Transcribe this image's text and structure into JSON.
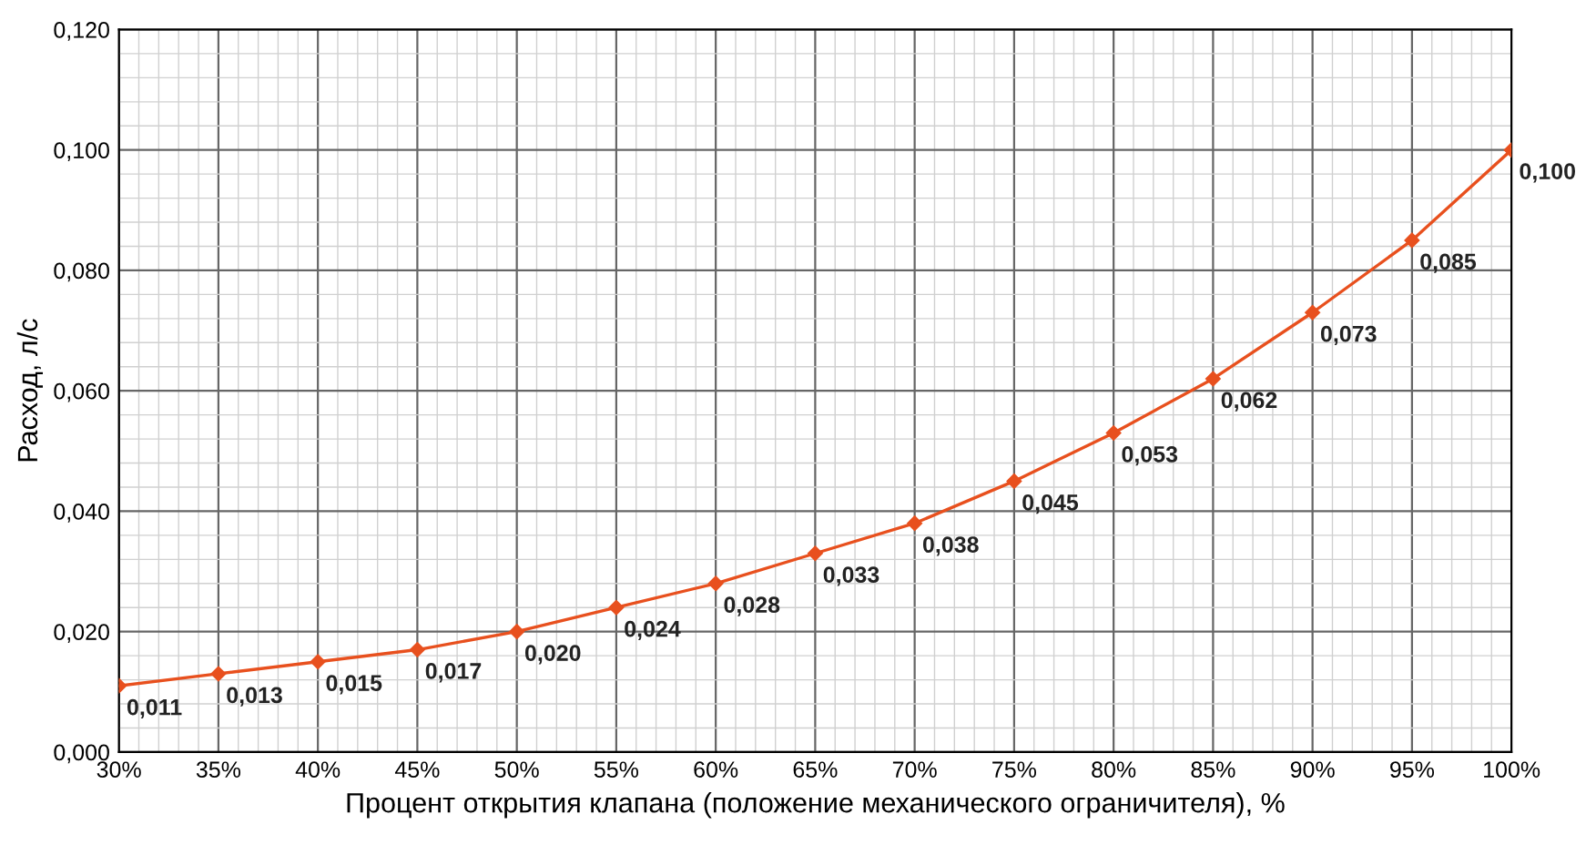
{
  "chart_data": {
    "type": "line",
    "xlabel": "Процент открытия клапана (положение механического ограничителя), %",
    "ylabel": "Расход, л/с",
    "x": [
      30,
      35,
      40,
      45,
      50,
      55,
      60,
      65,
      70,
      75,
      80,
      85,
      90,
      95,
      100
    ],
    "series": [
      {
        "color": "#e8501e",
        "values": [
          0.011,
          0.013,
          0.015,
          0.017,
          0.02,
          0.024,
          0.028,
          0.033,
          0.038,
          0.045,
          0.053,
          0.062,
          0.073,
          0.085,
          0.1
        ],
        "value_labels": [
          "0,011",
          "0,013",
          "0,015",
          "0,017",
          "0,020",
          "0,024",
          "0,028",
          "0,033",
          "0,038",
          "0,045",
          "0,053",
          "0,062",
          "0,073",
          "0,085",
          "0,100"
        ]
      }
    ],
    "xlim": [
      30,
      100
    ],
    "ylim": [
      0,
      0.12
    ],
    "xticks": [
      {
        "value": 30,
        "label": "30%"
      },
      {
        "value": 35,
        "label": "35%"
      },
      {
        "value": 40,
        "label": "40%"
      },
      {
        "value": 45,
        "label": "45%"
      },
      {
        "value": 50,
        "label": "50%"
      },
      {
        "value": 55,
        "label": "55%"
      },
      {
        "value": 60,
        "label": "60%"
      },
      {
        "value": 65,
        "label": "65%"
      },
      {
        "value": 70,
        "label": "70%"
      },
      {
        "value": 75,
        "label": "75%"
      },
      {
        "value": 80,
        "label": "80%"
      },
      {
        "value": 85,
        "label": "85%"
      },
      {
        "value": 90,
        "label": "90%"
      },
      {
        "value": 95,
        "label": "95%"
      },
      {
        "value": 100,
        "label": "100%"
      }
    ],
    "yticks": [
      {
        "value": 0,
        "label": "0,000"
      },
      {
        "value": 0.02,
        "label": "0,020"
      },
      {
        "value": 0.04,
        "label": "0,040"
      },
      {
        "value": 0.06,
        "label": "0,060"
      },
      {
        "value": 0.08,
        "label": "0,080"
      },
      {
        "value": 0.1,
        "label": "0,100"
      },
      {
        "value": 0.12,
        "label": "0,120"
      }
    ],
    "grid": true,
    "marker": "diamond",
    "line_style": "solid",
    "legend": false
  }
}
